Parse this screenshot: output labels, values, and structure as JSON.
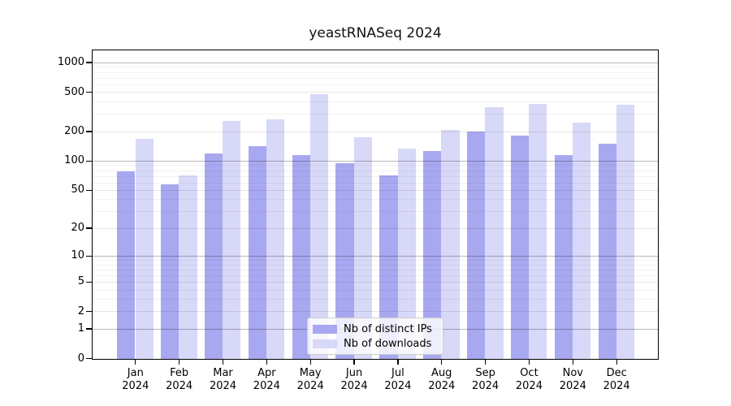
{
  "figure": {
    "title": "yeastRNASeq 2024"
  },
  "chart_data": {
    "type": "bar",
    "title": "yeastRNASeq 2024",
    "categories": [
      "Jan",
      "Feb",
      "Mar",
      "Apr",
      "May",
      "Jun",
      "Jul",
      "Aug",
      "Sep",
      "Oct",
      "Nov",
      "Dec"
    ],
    "category_year_suffix": "2024",
    "series": [
      {
        "name": "Nb of distinct IPs",
        "color": "#a8a8f0",
        "values": [
          78,
          58,
          119,
          143,
          116,
          96,
          72,
          127,
          199,
          183,
          116,
          151
        ]
      },
      {
        "name": "Nb of downloads",
        "color": "#d8d8f8",
        "values": [
          170,
          71,
          258,
          268,
          481,
          176,
          135,
          209,
          356,
          385,
          248,
          378
        ]
      }
    ],
    "yscale": "log1p",
    "yticks": [
      0,
      1,
      2,
      5,
      10,
      20,
      50,
      100,
      200,
      500,
      1000
    ],
    "ylim": [
      0,
      1430
    ],
    "grid": "horizontal",
    "legend_position": "lower center"
  },
  "legend": {
    "items": [
      {
        "label": "Nb of distinct IPs",
        "color": "#a8a8f0"
      },
      {
        "label": "Nb of downloads",
        "color": "#d8d8f8"
      }
    ]
  },
  "colors": {
    "bar_ips": "#a8a8f0",
    "bar_downloads": "#d8d8f8",
    "axis": "#000000",
    "legend_border": "#cccccc",
    "background": "#ffffff"
  }
}
